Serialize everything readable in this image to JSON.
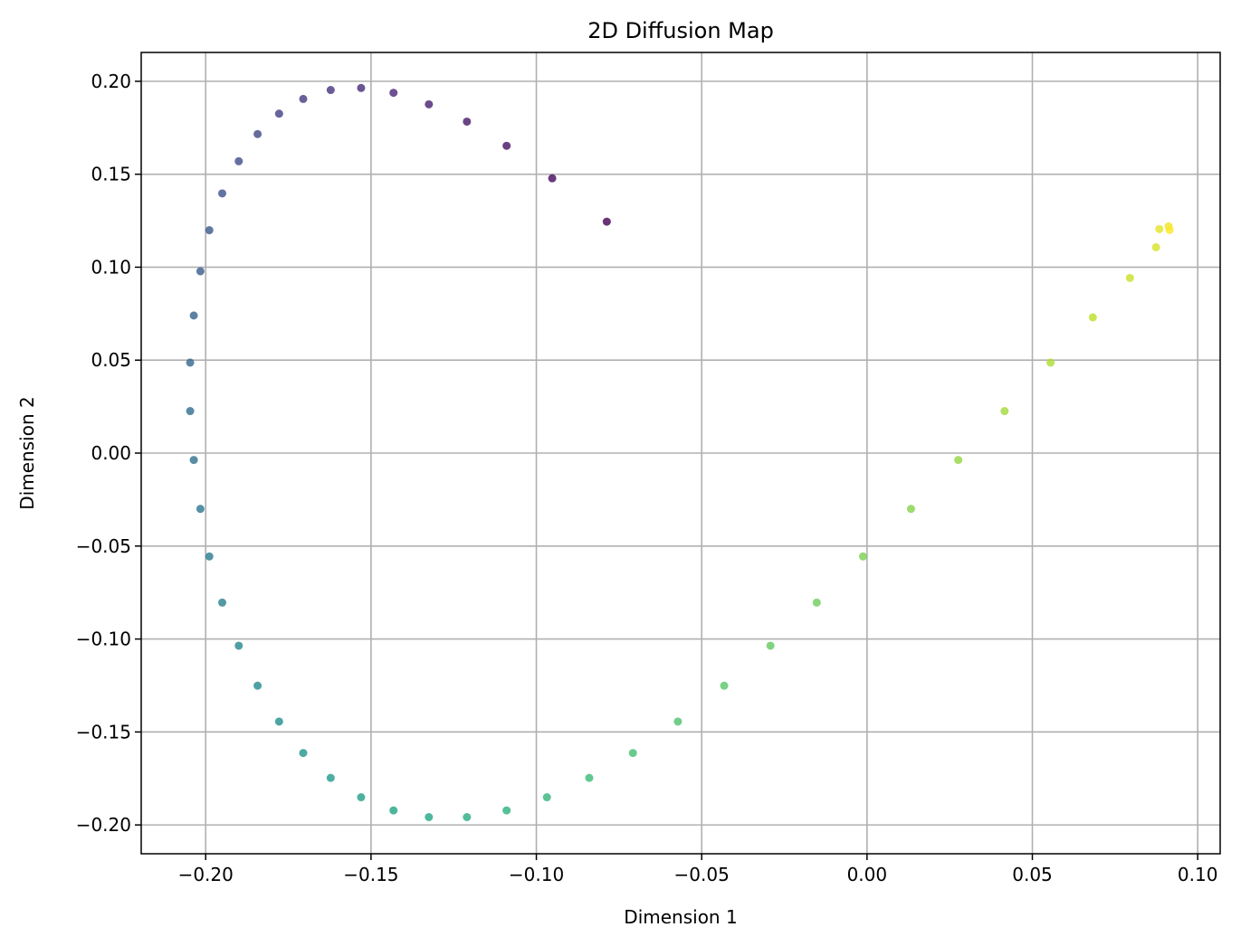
{
  "chart_data": {
    "type": "scatter",
    "title": "2D Diffusion Map",
    "xlabel": "Dimension 1",
    "ylabel": "Dimension 2",
    "xlim": [
      -0.2195,
      0.1068
    ],
    "ylim": [
      -0.2155,
      0.2155
    ],
    "grid": true,
    "colormap": "viridis",
    "x_ticks": [
      -0.2,
      -0.15,
      -0.1,
      -0.05,
      0.0,
      0.05,
      0.1
    ],
    "x_tick_labels": [
      "−0.20",
      "−0.15",
      "−0.10",
      "−0.05",
      "0.00",
      "0.05",
      "0.10"
    ],
    "y_ticks": [
      0.2,
      0.15,
      0.1,
      0.05,
      0.0,
      -0.05,
      -0.1,
      -0.15,
      -0.2
    ],
    "y_tick_labels": [
      "0.20",
      "0.15",
      "0.10",
      "0.05",
      "0.00",
      "−0.05",
      "−0.10",
      "−0.15",
      "−0.20"
    ],
    "points": [
      {
        "x": -0.0787,
        "y": 0.1245
      },
      {
        "x": -0.0952,
        "y": 0.1478
      },
      {
        "x": -0.109,
        "y": 0.1653
      },
      {
        "x": -0.121,
        "y": 0.1783
      },
      {
        "x": -0.1325,
        "y": 0.1876
      },
      {
        "x": -0.1432,
        "y": 0.1938
      },
      {
        "x": -0.153,
        "y": 0.1964
      },
      {
        "x": -0.1622,
        "y": 0.1953
      },
      {
        "x": -0.1705,
        "y": 0.1905
      },
      {
        "x": -0.1778,
        "y": 0.1826
      },
      {
        "x": -0.1843,
        "y": 0.1716
      },
      {
        "x": -0.19,
        "y": 0.157
      },
      {
        "x": -0.195,
        "y": 0.1397
      },
      {
        "x": -0.1989,
        "y": 0.1199
      },
      {
        "x": -0.2016,
        "y": 0.0978
      },
      {
        "x": -0.2036,
        "y": 0.074
      },
      {
        "x": -0.2047,
        "y": 0.0487
      },
      {
        "x": -0.2047,
        "y": 0.0226
      },
      {
        "x": -0.2036,
        "y": -0.0037
      },
      {
        "x": -0.2016,
        "y": -0.03
      },
      {
        "x": -0.1989,
        "y": -0.0556
      },
      {
        "x": -0.195,
        "y": -0.0804
      },
      {
        "x": -0.19,
        "y": -0.1036
      },
      {
        "x": -0.1843,
        "y": -0.1251
      },
      {
        "x": -0.1778,
        "y": -0.1444
      },
      {
        "x": -0.1705,
        "y": -0.1613
      },
      {
        "x": -0.1622,
        "y": -0.1747
      },
      {
        "x": -0.153,
        "y": -0.1851
      },
      {
        "x": -0.1432,
        "y": -0.1922
      },
      {
        "x": -0.1325,
        "y": -0.1958
      },
      {
        "x": -0.121,
        "y": -0.1958
      },
      {
        "x": -0.109,
        "y": -0.1922
      },
      {
        "x": -0.0968,
        "y": -0.1851
      },
      {
        "x": -0.084,
        "y": -0.1747
      },
      {
        "x": -0.0708,
        "y": -0.1613
      },
      {
        "x": -0.0572,
        "y": -0.1444
      },
      {
        "x": -0.0432,
        "y": -0.1251
      },
      {
        "x": -0.0292,
        "y": -0.1036
      },
      {
        "x": -0.0152,
        "y": -0.0804
      },
      {
        "x": -0.0012,
        "y": -0.0556
      },
      {
        "x": 0.0133,
        "y": -0.03
      },
      {
        "x": 0.0276,
        "y": -0.0037
      },
      {
        "x": 0.0416,
        "y": 0.0226
      },
      {
        "x": 0.0555,
        "y": 0.0487
      },
      {
        "x": 0.0683,
        "y": 0.073
      },
      {
        "x": 0.0795,
        "y": 0.0942
      },
      {
        "x": 0.0874,
        "y": 0.1107
      },
      {
        "x": 0.0884,
        "y": 0.1205
      },
      {
        "x": 0.0912,
        "y": 0.122
      },
      {
        "x": 0.0915,
        "y": 0.12
      }
    ]
  }
}
